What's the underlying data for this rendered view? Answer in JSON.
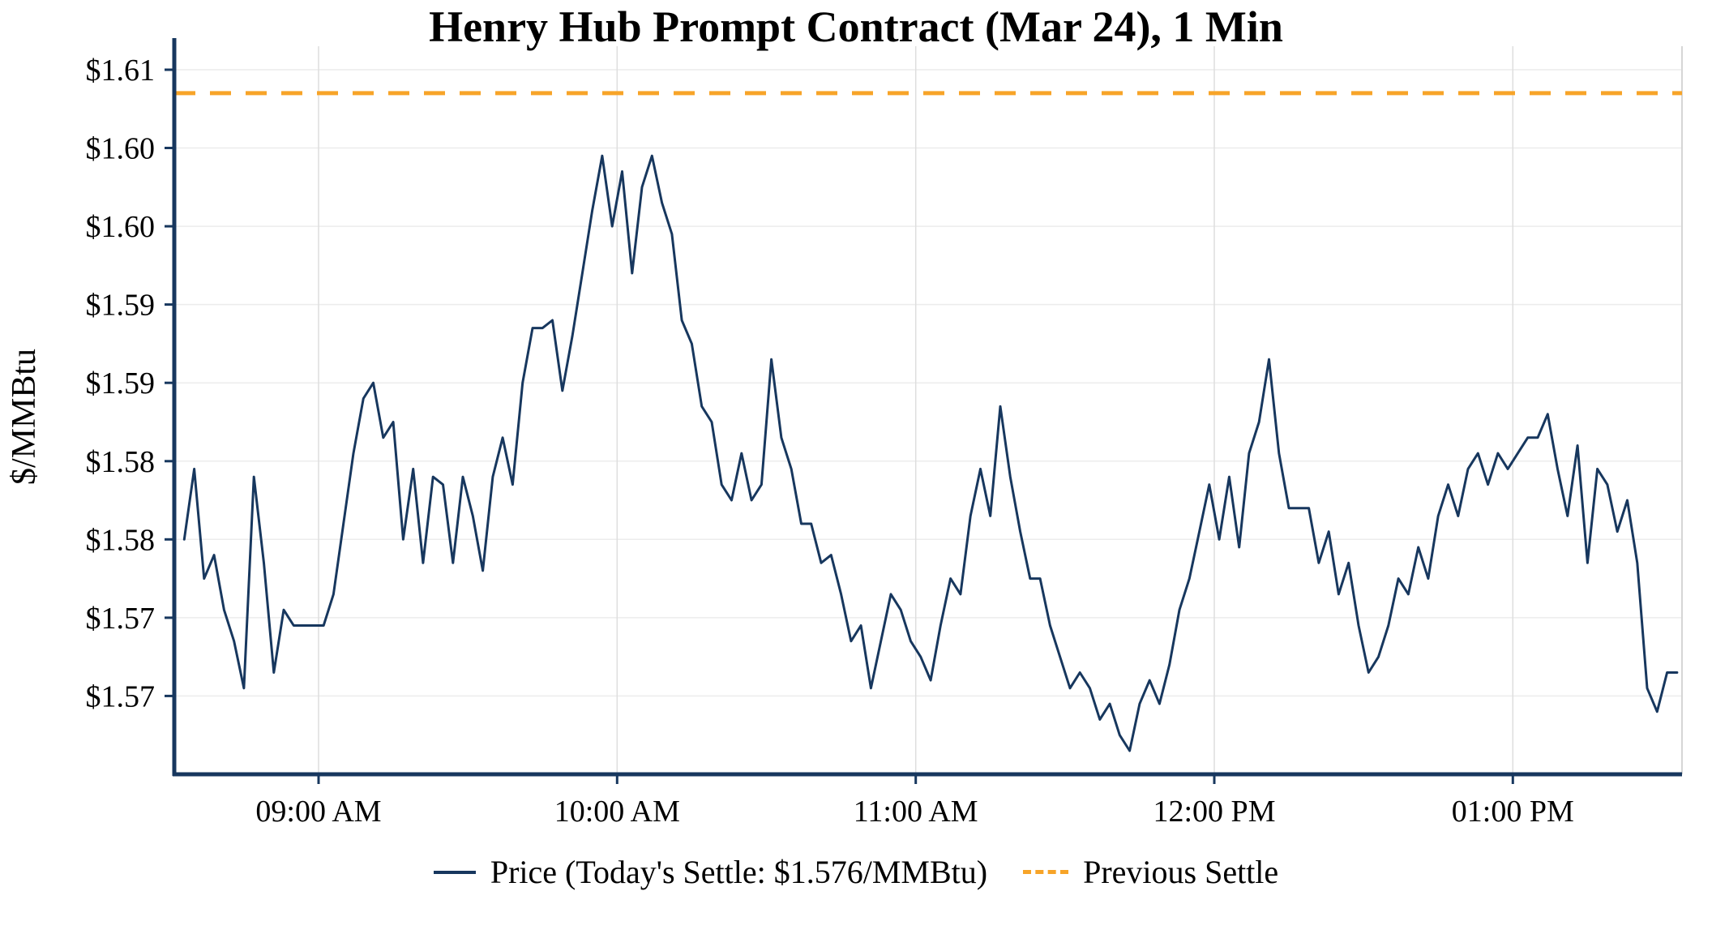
{
  "title": "Henry Hub Prompt Contract (Mar 24), 1 Min",
  "y_axis_label": "$/MMBtu",
  "legend": {
    "price_label": "Price (Today's Settle: $1.576/MMBtu)",
    "settle_label": "Previous Settle"
  },
  "colors": {
    "price_line": "#17375e",
    "previous_settle": "#f7a428",
    "axis": "#17375e",
    "grid_h": "#ececec",
    "grid_v": "#dedede",
    "right_spine": "#d6d6d6",
    "text": "#000000",
    "background": "#ffffff"
  },
  "chart_data": {
    "type": "line",
    "title": "Henry Hub Prompt Contract (Mar 24), 1 Min",
    "xlabel": "",
    "ylabel": "$/MMBtu",
    "legend_position": "bottom-center",
    "grid": true,
    "ylim": [
      1.565,
      1.6115
    ],
    "xlim_minutes": [
      1,
      304
    ],
    "x_reference_time": "08:30 AM",
    "previous_settle": 1.6085,
    "todays_settle": 1.576,
    "y_ticks": [
      {
        "value": 1.57,
        "label": "$1.57"
      },
      {
        "value": 1.575,
        "label": "$1.57"
      },
      {
        "value": 1.58,
        "label": "$1.58"
      },
      {
        "value": 1.585,
        "label": "$1.58"
      },
      {
        "value": 1.59,
        "label": "$1.59"
      },
      {
        "value": 1.595,
        "label": "$1.59"
      },
      {
        "value": 1.6,
        "label": "$1.60"
      },
      {
        "value": 1.605,
        "label": "$1.60"
      },
      {
        "value": 1.61,
        "label": "$1.61"
      }
    ],
    "x_ticks": [
      {
        "minutes": 30,
        "label": "09:00 AM"
      },
      {
        "minutes": 90,
        "label": "10:00 AM"
      },
      {
        "minutes": 150,
        "label": "11:00 AM"
      },
      {
        "minutes": 210,
        "label": "12:00 PM"
      },
      {
        "minutes": 270,
        "label": "01:00 PM"
      }
    ],
    "series": [
      {
        "name": "Price",
        "start_minute": 3,
        "step_minutes": 2,
        "values": [
          1.58,
          1.5845,
          1.5775,
          1.579,
          1.5755,
          1.5735,
          1.5705,
          1.584,
          1.5785,
          1.5715,
          1.5755,
          1.5745,
          1.5745,
          1.5745,
          1.5745,
          1.5765,
          1.581,
          1.5855,
          1.589,
          1.59,
          1.5865,
          1.5875,
          1.58,
          1.5845,
          1.5785,
          1.584,
          1.5835,
          1.5785,
          1.584,
          1.5815,
          1.578,
          1.584,
          1.5865,
          1.5835,
          1.59,
          1.5935,
          1.5935,
          1.594,
          1.5895,
          1.593,
          1.597,
          1.601,
          1.6045,
          1.6,
          1.6035,
          1.597,
          1.6025,
          1.6045,
          1.6015,
          1.5995,
          1.594,
          1.5925,
          1.5885,
          1.5875,
          1.5835,
          1.5825,
          1.5855,
          1.5825,
          1.5835,
          1.5915,
          1.5865,
          1.5845,
          1.581,
          1.581,
          1.5785,
          1.579,
          1.5765,
          1.5735,
          1.5745,
          1.5705,
          1.5735,
          1.5765,
          1.5755,
          1.5735,
          1.5725,
          1.571,
          1.5745,
          1.5775,
          1.5765,
          1.5815,
          1.5845,
          1.5815,
          1.5885,
          1.584,
          1.5805,
          1.5775,
          1.5775,
          1.5745,
          1.5725,
          1.5705,
          1.5715,
          1.5705,
          1.5685,
          1.5695,
          1.5675,
          1.5665,
          1.5695,
          1.571,
          1.5695,
          1.572,
          1.5755,
          1.5775,
          1.5805,
          1.5835,
          1.58,
          1.584,
          1.5795,
          1.5855,
          1.5875,
          1.5915,
          1.5855,
          1.582,
          1.582,
          1.582,
          1.5785,
          1.5805,
          1.5765,
          1.5785,
          1.5745,
          1.5715,
          1.5725,
          1.5745,
          1.5775,
          1.5765,
          1.5795,
          1.5775,
          1.5815,
          1.5835,
          1.5815,
          1.5845,
          1.5855,
          1.5835,
          1.5855,
          1.5845,
          1.5855,
          1.5865,
          1.5865,
          1.588,
          1.5845,
          1.5815,
          1.586,
          1.5785,
          1.5845,
          1.5835,
          1.5805,
          1.5825,
          1.5785,
          1.5705,
          1.569,
          1.5715,
          1.5715
        ]
      }
    ]
  }
}
